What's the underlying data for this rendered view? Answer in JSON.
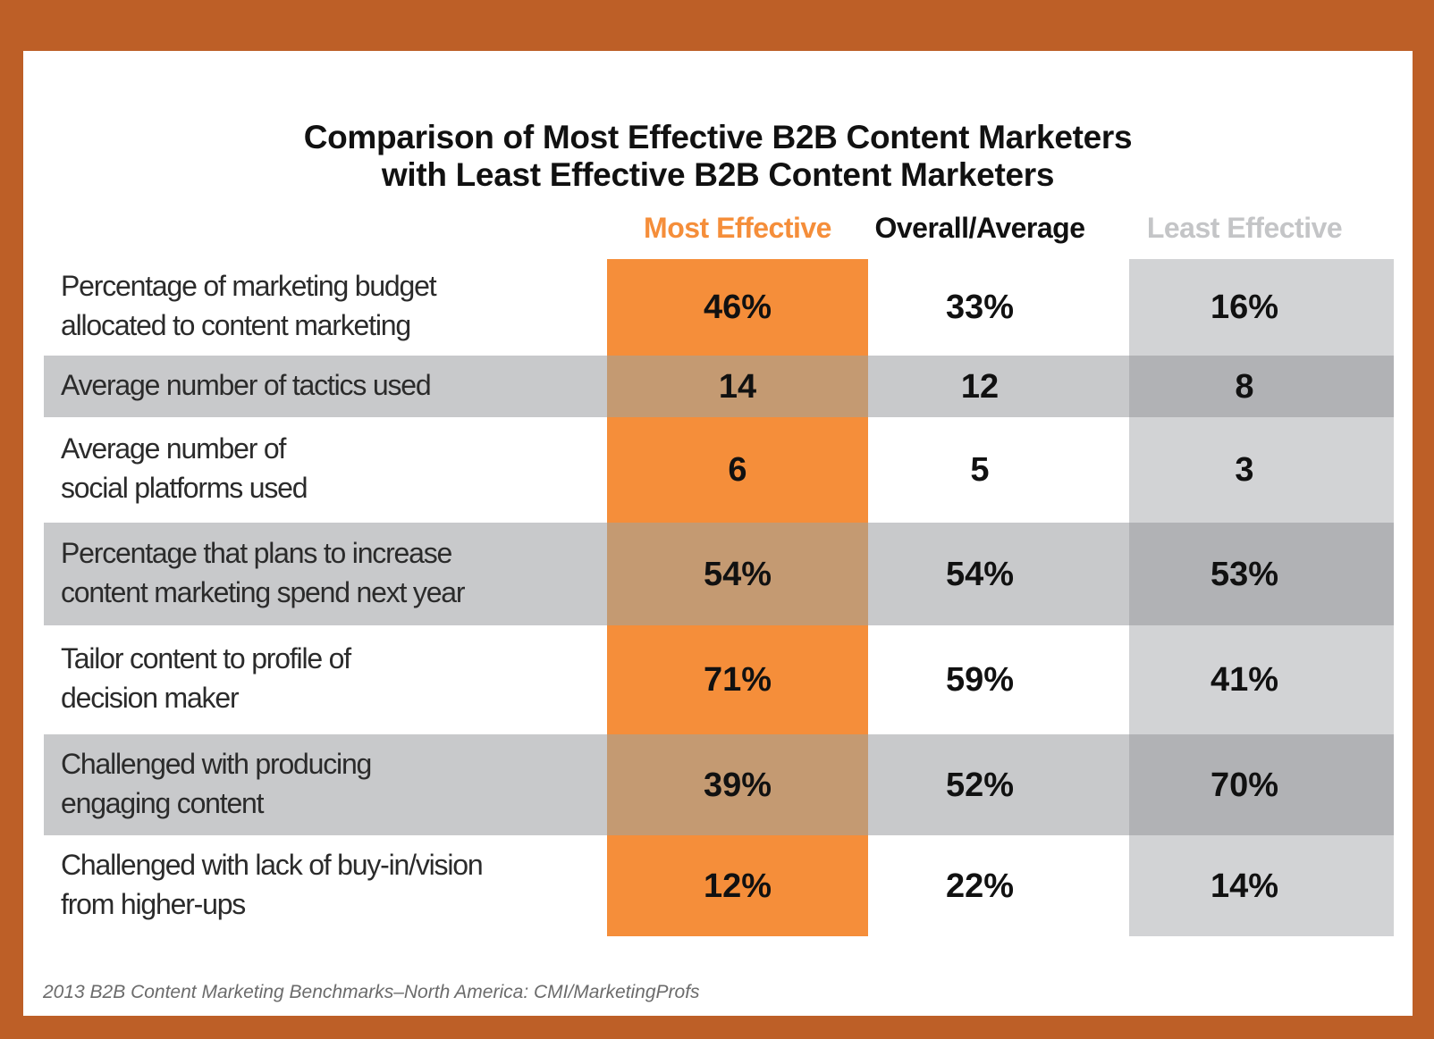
{
  "chart_data": {
    "type": "table",
    "title": "Comparison of Most Effective B2B Content Marketers with Least Effective B2B Content Marketers",
    "title_lines": [
      "Comparison of Most Effective B2B Content Marketers",
      "with Least Effective B2B Content Marketers"
    ],
    "columns": [
      {
        "name": "Most Effective",
        "color": "#f58e3a",
        "header_color": "#f58e3a"
      },
      {
        "name": "Overall/Average",
        "color": "#ffffff",
        "header_color": "#111111"
      },
      {
        "name": "Least Effective",
        "color": "#d2d3d5",
        "header_color": "#c4c5c7"
      }
    ],
    "rows": [
      {
        "label": [
          "Percentage of marketing budget",
          "allocated to content marketing"
        ],
        "values": [
          "46%",
          "33%",
          "16%"
        ]
      },
      {
        "label": [
          "Average number of tactics used"
        ],
        "values": [
          "14",
          "12",
          "8"
        ]
      },
      {
        "label": [
          "Average number of",
          "social platforms used"
        ],
        "values": [
          "6",
          "5",
          "3"
        ]
      },
      {
        "label": [
          "Percentage that plans to increase",
          "content marketing spend next year"
        ],
        "values": [
          "54%",
          "54%",
          "53%"
        ]
      },
      {
        "label": [
          "Tailor content to profile of",
          "decision maker"
        ],
        "values": [
          "71%",
          "59%",
          "41%"
        ]
      },
      {
        "label": [
          "Challenged with producing",
          "engaging content"
        ],
        "values": [
          "39%",
          "52%",
          "70%"
        ]
      },
      {
        "label": [
          "Challenged with lack of buy-in/vision",
          "from higher-ups"
        ],
        "values": [
          "12%",
          "22%",
          "14%"
        ]
      }
    ],
    "source": "2013 B2B Content Marketing Benchmarks–North America: CMI/MarketingProfs"
  },
  "colors": {
    "frame": "#bd5f27",
    "most_effective": "#f58e3a",
    "band_gray": "#c8c9cb",
    "least_effective": "#d2d3d5"
  }
}
